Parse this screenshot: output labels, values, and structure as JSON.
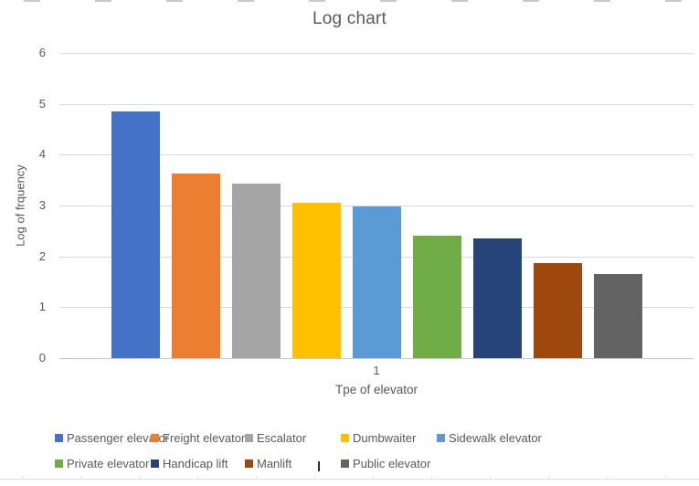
{
  "chart_data": {
    "type": "bar",
    "title": "Log chart",
    "xlabel": "Tpe of elevator",
    "ylabel": "Log of frquency",
    "categories": [
      "1"
    ],
    "x_category_label": "1",
    "ylim": [
      0,
      6
    ],
    "yticks": [
      0,
      1,
      2,
      3,
      4,
      5,
      6
    ],
    "grid": true,
    "legend_position": "bottom",
    "series": [
      {
        "name": "Passenger elevator",
        "value": 4.85,
        "color": "#4472C4"
      },
      {
        "name": "Freight elevator",
        "value": 3.62,
        "color": "#ED7D31"
      },
      {
        "name": "Escalator",
        "value": 3.44,
        "color": "#A5A5A5"
      },
      {
        "name": "Dumbwaiter",
        "value": 3.06,
        "color": "#FFC000"
      },
      {
        "name": "Sidewalk elevator",
        "value": 2.99,
        "color": "#5B9BD5"
      },
      {
        "name": "Private elevator",
        "value": 2.4,
        "color": "#70AD47"
      },
      {
        "name": "Handicap lift",
        "value": 2.36,
        "color": "#264478"
      },
      {
        "name": "Manlift",
        "value": 1.87,
        "color": "#9E480E"
      },
      {
        "name": "Public elevator",
        "value": 1.66,
        "color": "#636363"
      }
    ],
    "colors": {
      "text": "#595959",
      "gridline": "#D9D9D9",
      "axis_line": "#C6C6C6",
      "background": "#FFFFFF"
    }
  }
}
